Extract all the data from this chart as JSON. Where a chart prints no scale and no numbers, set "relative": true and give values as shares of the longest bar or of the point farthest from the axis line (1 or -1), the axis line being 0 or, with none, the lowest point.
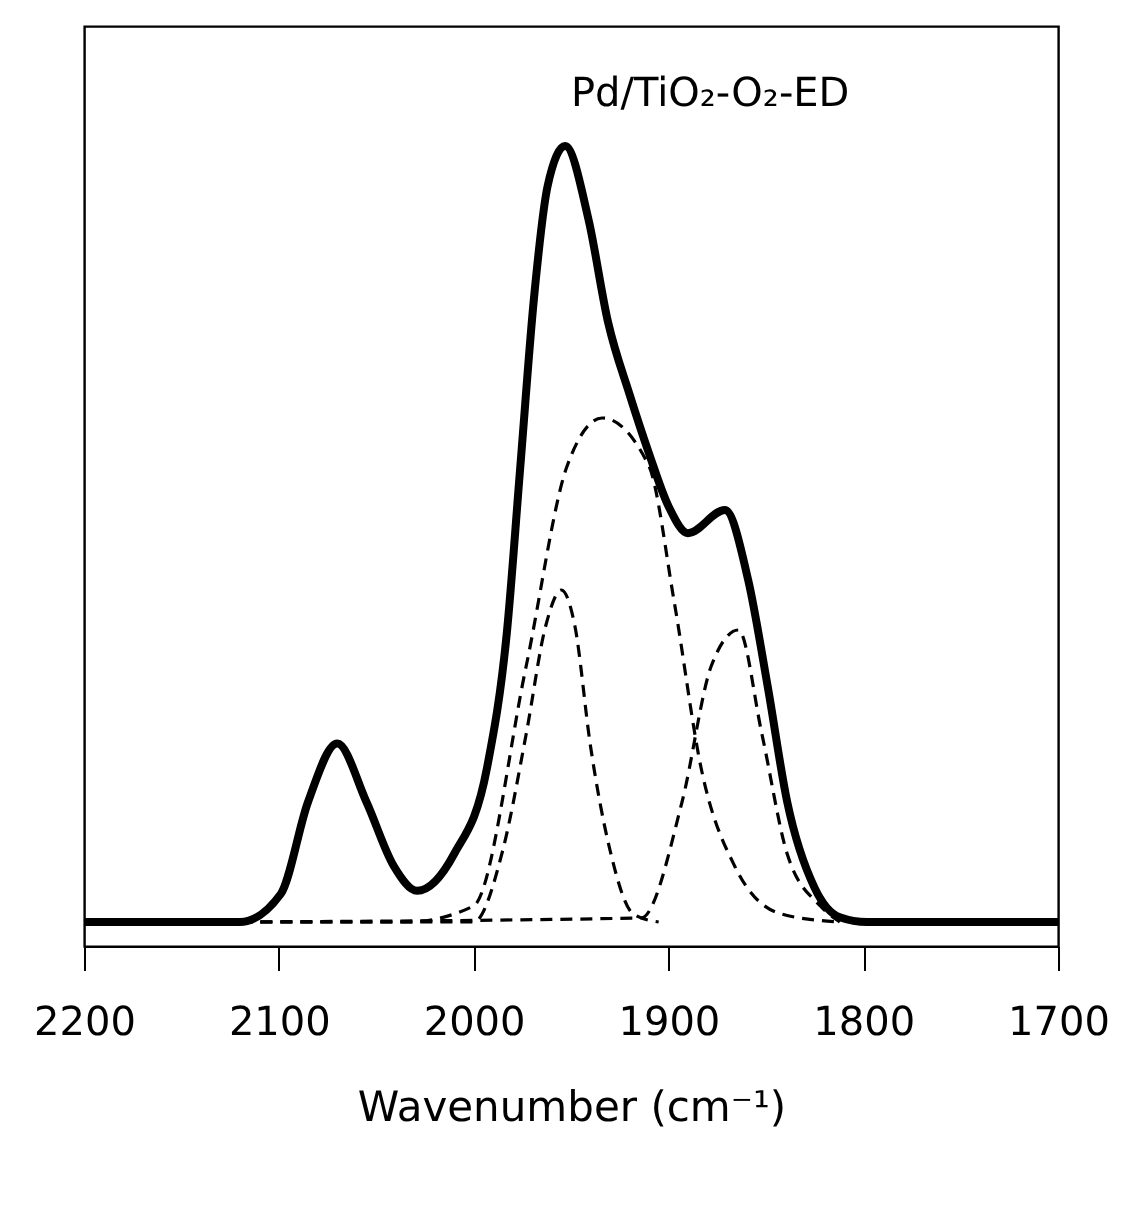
{
  "chart_data": {
    "type": "line",
    "relative": true,
    "xlabel": "Wavenumber (cm⁻¹)",
    "xlim": [
      2200,
      1700
    ],
    "xticks": [
      2200,
      2100,
      2000,
      1900,
      1800,
      1700
    ],
    "grid": false,
    "marker": "none",
    "annotations": [
      "Pd/TiO₂-O₂-ED"
    ],
    "series": [
      {
        "color": "#000000",
        "line_style": "solid",
        "x": [
          2200,
          2120,
          2099,
          2085,
          2070,
          2055,
          2041,
          2029,
          2010,
          1993,
          1983,
          1976,
          1969,
          1962,
          1953,
          1941,
          1931,
          1920,
          1910,
          1900,
          1890,
          1871,
          1859,
          1849,
          1839,
          1825,
          1812,
          1798,
          1700
        ],
        "values": [
          0.03,
          0.03,
          0.065,
          0.18,
          0.253,
          0.18,
          0.1,
          0.069,
          0.115,
          0.224,
          0.39,
          0.6,
          0.81,
          0.95,
          1.0,
          0.908,
          0.78,
          0.69,
          0.616,
          0.55,
          0.516,
          0.545,
          0.457,
          0.324,
          0.18,
          0.073,
          0.036,
          0.03,
          0.03
        ]
      },
      {
        "color": "#000000",
        "line_style": "dashed",
        "x": [
          2130,
          2034,
          2000,
          1973,
          1952,
          1934,
          1910,
          1897,
          1883,
          1866,
          1842,
          1812
        ],
        "values": [
          0.03,
          0.03,
          0.05,
          0.35,
          0.6,
          0.66,
          0.6,
          0.43,
          0.22,
          0.1,
          0.04,
          0.03
        ]
      },
      {
        "color": "#000000",
        "line_style": "dashed",
        "x": [
          2130,
          2000,
          1985,
          1973,
          1963,
          1955,
          1948,
          1940,
          1930,
          1918,
          1905
        ],
        "values": [
          0.03,
          0.03,
          0.12,
          0.265,
          0.4,
          0.445,
          0.4,
          0.25,
          0.12,
          0.04,
          0.03
        ]
      },
      {
        "color": "#000000",
        "line_style": "dashed",
        "x": [
          2130,
          1914,
          1893,
          1878,
          1864,
          1852,
          1839,
          1822,
          1812
        ],
        "values": [
          0.03,
          0.035,
          0.18,
          0.35,
          0.395,
          0.265,
          0.115,
          0.05,
          0.03
        ]
      }
    ]
  }
}
